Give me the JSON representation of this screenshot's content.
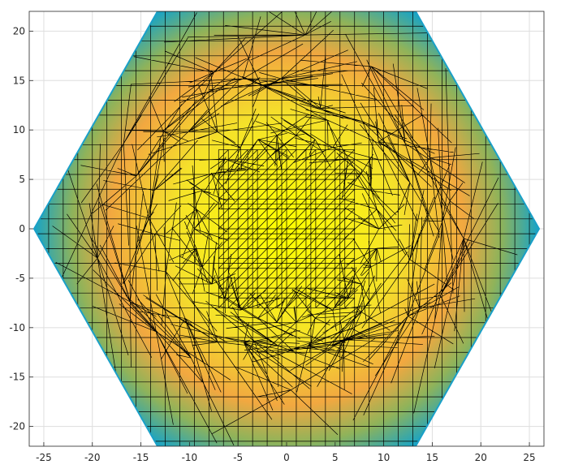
{
  "chart_data": {
    "type": "heatmap",
    "title": "",
    "xlabel": "",
    "ylabel": "",
    "xlim": [
      -26.5,
      26.5
    ],
    "ylim": [
      -22,
      22
    ],
    "grid": true,
    "x_ticks": [
      -25,
      -20,
      -15,
      -10,
      -5,
      0,
      5,
      10,
      15,
      20,
      25
    ],
    "y_ticks": [
      -20,
      -15,
      -10,
      -5,
      0,
      5,
      10,
      15,
      20
    ],
    "x_tick_labels": [
      "-25",
      "-20",
      "-15",
      "-10",
      "-5",
      "0",
      "5",
      "10",
      "15",
      "20",
      "25"
    ],
    "y_tick_labels": [
      "-20",
      "-15",
      "-10",
      "-5",
      "0",
      "5",
      "10",
      "15",
      "20"
    ],
    "shape": "hexagon",
    "hexagon_vertices": [
      [
        -26,
        0
      ],
      [
        -13,
        22.5
      ],
      [
        13,
        22.5
      ],
      [
        26,
        0
      ],
      [
        13,
        -22.5
      ],
      [
        -13,
        -22.5
      ]
    ],
    "color_gradient": [
      {
        "level": 0.0,
        "color": "#ffff00"
      },
      {
        "level": 0.45,
        "color": "#f5e22a"
      },
      {
        "level": 0.7,
        "color": "#f2a840"
      },
      {
        "level": 0.85,
        "color": "#8fb35a"
      },
      {
        "level": 1.0,
        "color": "#16a3c7"
      }
    ],
    "mesh_edge_color": "#000000",
    "grid_color": "#dedede"
  }
}
